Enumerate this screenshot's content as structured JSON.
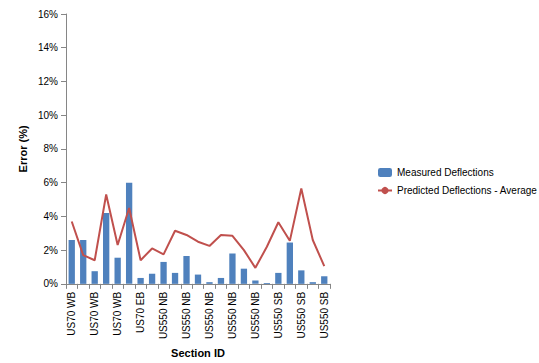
{
  "chart_data": {
    "type": "bar",
    "x_label": "Section ID",
    "y_label": "Error (%)",
    "categories": [
      "US70 WB",
      null,
      "US70 WB",
      null,
      "US70 WB",
      null,
      "US70 EB",
      null,
      "US550 NB",
      null,
      "US550 NB",
      null,
      "US550 NB",
      null,
      "US550 NB",
      null,
      "US550 NB",
      null,
      "US550 SB",
      null,
      "US550 SB",
      null,
      "US550 SB"
    ],
    "series": [
      {
        "name": "Measured Deflections",
        "type": "bar",
        "color": "#4f81bd",
        "values": [
          2.6,
          2.6,
          0.75,
          4.2,
          1.55,
          6.0,
          0.35,
          0.6,
          1.3,
          0.65,
          1.65,
          0.55,
          0.1,
          0.35,
          1.8,
          0.9,
          0.2,
          0.05,
          0.65,
          2.45,
          0.8,
          0.1,
          0.45
        ]
      },
      {
        "name": "Predicted Deflections - Average",
        "type": "line",
        "color": "#c0504d",
        "marker": "none",
        "values": [
          3.7,
          1.7,
          1.4,
          5.3,
          2.3,
          4.5,
          1.4,
          2.1,
          1.75,
          3.15,
          2.9,
          2.5,
          2.25,
          2.9,
          2.85,
          2.0,
          0.95,
          2.2,
          3.65,
          2.55,
          5.65,
          2.6,
          1.05
        ]
      }
    ],
    "ylim": [
      0,
      16
    ],
    "yticks": [
      {
        "value": 0,
        "label": "0%"
      },
      {
        "value": 2,
        "label": "2%"
      },
      {
        "value": 4,
        "label": "4%"
      },
      {
        "value": 6,
        "label": "6%"
      },
      {
        "value": 8,
        "label": "8%"
      },
      {
        "value": 10,
        "label": "10%"
      },
      {
        "value": 12,
        "label": "12%"
      },
      {
        "value": 14,
        "label": "14%"
      },
      {
        "value": 16,
        "label": "16%"
      }
    ],
    "grid": false,
    "legend": "right"
  }
}
